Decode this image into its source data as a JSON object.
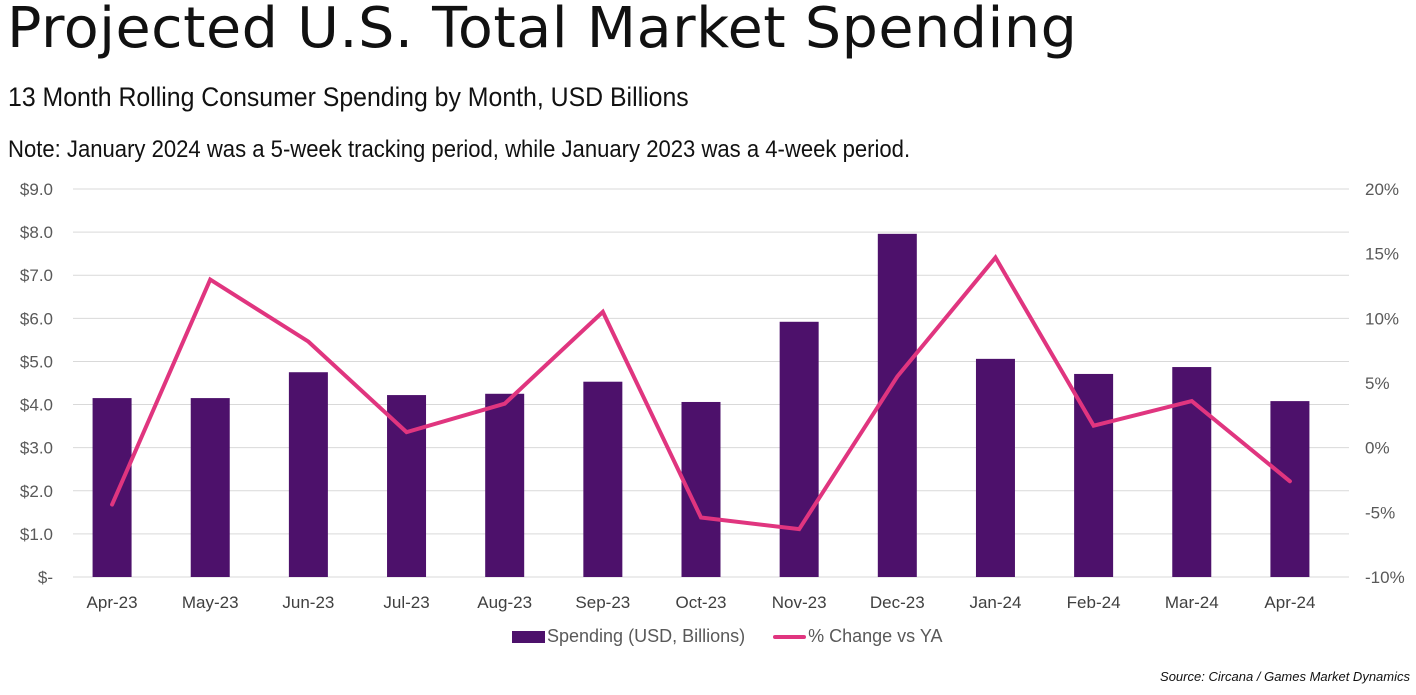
{
  "header": {
    "title": "Projected U.S. Total Market Spending",
    "subtitle": "13 Month Rolling Consumer Spending by Month, USD Billions",
    "note": "Note: January 2024 was a 5-week tracking period, while January 2023 was a 4-week period."
  },
  "legend": {
    "bar_label": "Spending (USD, Billions)",
    "line_label": "% Change vs YA"
  },
  "source": "Source: Circana / Games Market Dynamics",
  "colors": {
    "bar": "#4d116b",
    "line": "#e0357f",
    "grid": "#d9d9d9"
  },
  "chart_data": {
    "type": "bar",
    "title": "Projected U.S. Total Market Spending",
    "subtitle": "13 Month Rolling Consumer Spending by Month, USD Billions",
    "xlabel": "",
    "ylabel": "",
    "categories": [
      "Apr-23",
      "May-23",
      "Jun-23",
      "Jul-23",
      "Aug-23",
      "Sep-23",
      "Oct-23",
      "Nov-23",
      "Dec-23",
      "Jan-24",
      "Feb-24",
      "Mar-24",
      "Apr-24"
    ],
    "series": [
      {
        "name": "Spending (USD, Billions)",
        "type": "bar",
        "axis": "left",
        "values": [
          4.15,
          4.15,
          4.75,
          4.22,
          4.25,
          4.53,
          4.06,
          5.92,
          7.96,
          5.06,
          4.71,
          4.87,
          4.08
        ]
      },
      {
        "name": "% Change vs YA",
        "type": "line",
        "axis": "right",
        "values": [
          -4.4,
          13.0,
          8.2,
          1.2,
          3.4,
          10.5,
          -5.4,
          -6.3,
          5.5,
          14.7,
          1.7,
          3.6,
          -2.6
        ]
      }
    ],
    "ylim": [
      0,
      9
    ],
    "y_ticks": [
      "$-",
      "$1.0",
      "$2.0",
      "$3.0",
      "$4.0",
      "$5.0",
      "$6.0",
      "$7.0",
      "$8.0",
      "$9.0"
    ],
    "y2lim": [
      -10,
      20
    ],
    "y2_ticks": [
      "-10%",
      "-5%",
      "0%",
      "5%",
      "10%",
      "15%",
      "20%"
    ],
    "grid": true,
    "legend_position": "bottom"
  }
}
